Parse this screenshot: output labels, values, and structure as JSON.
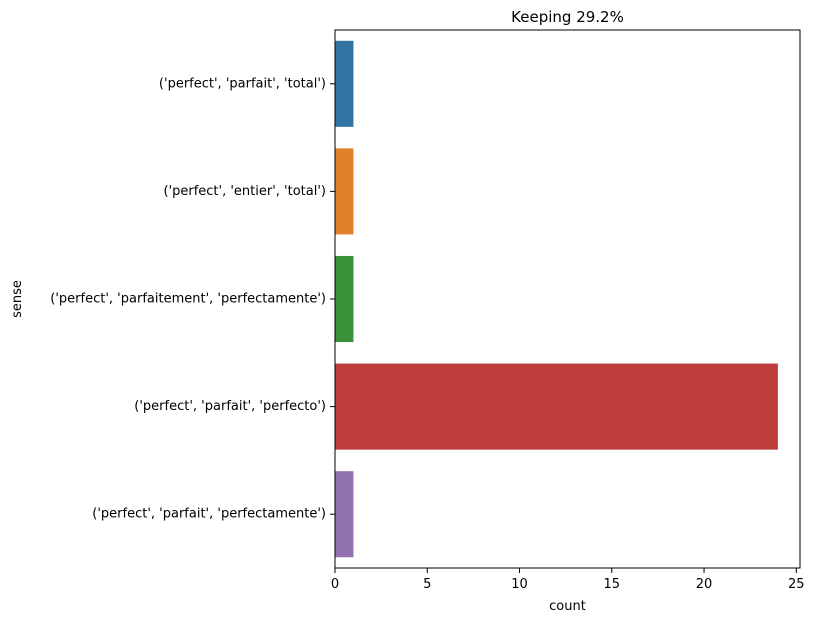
{
  "chart_data": {
    "type": "bar",
    "orientation": "horizontal",
    "title": "Keeping 29.2%",
    "xlabel": "count",
    "ylabel": "sense",
    "categories": [
      "('perfect', 'parfait', 'total')",
      "('perfect', 'entier', 'total')",
      "('perfect', 'parfaitement', 'perfectamente')",
      "('perfect', 'parfait', 'perfecto')",
      "('perfect', 'parfait', 'perfectamente')"
    ],
    "values": [
      1,
      1,
      1,
      24,
      1
    ],
    "colors": [
      "#3274a1",
      "#e1812c",
      "#3a923a",
      "#c03d3e",
      "#9372b2"
    ],
    "xlim": [
      0,
      25.2
    ],
    "xticks": [
      0,
      5,
      10,
      15,
      20,
      25
    ],
    "grid": false,
    "legend": "none"
  }
}
